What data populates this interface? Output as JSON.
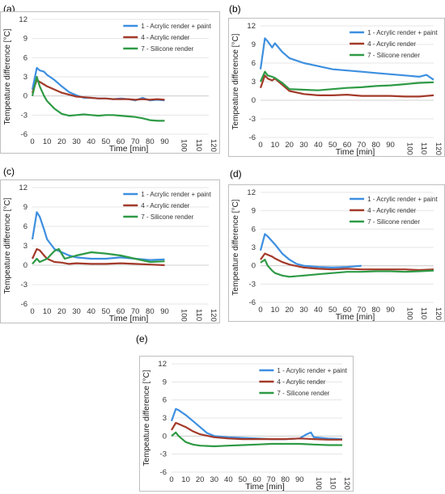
{
  "chart_data": [
    {
      "panel": "(a)",
      "type": "line",
      "xlabel": "Time [min]",
      "ylabel": "Tempeature difference [°C]",
      "ylim": [
        -6,
        12
      ],
      "yticks": [
        -6,
        -3,
        0,
        3,
        6,
        9,
        12
      ],
      "xticks": [
        0,
        10,
        20,
        30,
        40,
        50,
        60,
        70,
        80,
        90,
        100,
        110,
        120
      ],
      "grid": true,
      "legend_position": "top-right",
      "series": [
        {
          "name": "1 - Acrylic render + paint",
          "color": "#3d8fe0",
          "x": [
            0,
            3,
            5,
            8,
            10,
            15,
            20,
            25,
            30,
            35,
            40,
            45,
            50,
            55,
            60,
            65,
            70,
            75,
            80,
            85,
            90
          ],
          "y": [
            1.0,
            4.4,
            4.0,
            3.8,
            3.3,
            2.5,
            1.5,
            0.6,
            0.1,
            -0.3,
            -0.3,
            -0.4,
            -0.4,
            -0.5,
            -0.4,
            -0.5,
            -0.7,
            -0.3,
            -0.7,
            -0.6,
            -0.7
          ]
        },
        {
          "name": "4 - Acrylic render",
          "color": "#a33a2a",
          "x": [
            0,
            3,
            5,
            8,
            10,
            15,
            20,
            25,
            30,
            35,
            40,
            45,
            50,
            55,
            60,
            65,
            70,
            75,
            80,
            85,
            90
          ],
          "y": [
            0.5,
            2.5,
            2.2,
            1.8,
            1.5,
            1.0,
            0.5,
            0.2,
            -0.1,
            -0.2,
            -0.3,
            -0.4,
            -0.4,
            -0.5,
            -0.5,
            -0.5,
            -0.6,
            -0.5,
            -0.6,
            -0.5,
            -0.6
          ]
        },
        {
          "name": "7 - Silicone render",
          "color": "#2e9a45",
          "x": [
            0,
            3,
            5,
            8,
            10,
            15,
            20,
            25,
            30,
            35,
            40,
            45,
            50,
            55,
            60,
            65,
            70,
            75,
            80,
            85,
            90
          ],
          "y": [
            0.0,
            3.0,
            1.5,
            0.0,
            -0.8,
            -2.0,
            -2.8,
            -3.1,
            -3.0,
            -2.9,
            -3.0,
            -3.1,
            -3.0,
            -3.0,
            -3.1,
            -3.2,
            -3.3,
            -3.5,
            -3.8,
            -3.9,
            -3.9
          ]
        }
      ]
    },
    {
      "panel": "(b)",
      "type": "line",
      "xlabel": "Time [min]",
      "ylabel": "Tempeature difference [°C]",
      "ylim": [
        -6,
        12
      ],
      "yticks": [
        -6,
        -3,
        0,
        3,
        6,
        9,
        12
      ],
      "xticks": [
        0,
        10,
        20,
        30,
        40,
        50,
        60,
        70,
        80,
        90,
        100,
        110,
        120
      ],
      "grid": true,
      "legend_position": "top-right",
      "series": [
        {
          "name": "1 - Acrylic render + paint",
          "color": "#3d8fe0",
          "x": [
            0,
            3,
            5,
            8,
            10,
            15,
            20,
            30,
            40,
            50,
            60,
            70,
            80,
            90,
            100,
            110,
            115,
            120
          ],
          "y": [
            5.0,
            10.0,
            9.5,
            8.5,
            9.2,
            7.8,
            6.8,
            6.0,
            5.5,
            5.0,
            4.8,
            4.6,
            4.4,
            4.2,
            4.0,
            3.8,
            4.1,
            3.3
          ]
        },
        {
          "name": "4 - Acrylic render",
          "color": "#a33a2a",
          "x": [
            0,
            3,
            5,
            8,
            10,
            15,
            20,
            30,
            40,
            50,
            60,
            70,
            80,
            90,
            100,
            110,
            120
          ],
          "y": [
            2.0,
            4.0,
            3.5,
            3.2,
            3.5,
            2.5,
            1.5,
            1.0,
            0.8,
            0.8,
            0.9,
            0.7,
            0.7,
            0.7,
            0.6,
            0.6,
            0.8
          ]
        },
        {
          "name": "7 - Silicone render",
          "color": "#2e9a45",
          "x": [
            0,
            3,
            5,
            8,
            10,
            15,
            20,
            30,
            40,
            50,
            60,
            70,
            80,
            90,
            100,
            110,
            120
          ],
          "y": [
            3.0,
            4.6,
            4.0,
            3.8,
            3.6,
            2.8,
            1.8,
            1.7,
            1.6,
            1.8,
            2.0,
            2.1,
            2.3,
            2.4,
            2.6,
            2.8,
            2.9
          ]
        }
      ]
    },
    {
      "panel": "(c)",
      "type": "line",
      "xlabel": "Time [min]",
      "ylabel": "Tempeature difference [°C]",
      "ylim": [
        -6,
        12
      ],
      "yticks": [
        -6,
        -3,
        0,
        3,
        6,
        9,
        12
      ],
      "xticks": [
        0,
        10,
        20,
        30,
        40,
        50,
        60,
        70,
        80,
        90,
        100,
        110,
        120
      ],
      "grid": true,
      "legend_position": "top-right",
      "series": [
        {
          "name": "1 - Acrylic render + paint",
          "color": "#3d8fe0",
          "x": [
            0,
            3,
            5,
            8,
            10,
            15,
            20,
            25,
            30,
            40,
            50,
            60,
            70,
            80,
            90
          ],
          "y": [
            4.0,
            8.2,
            7.5,
            5.5,
            4.0,
            2.5,
            2.0,
            1.5,
            1.2,
            1.0,
            1.0,
            1.2,
            1.0,
            0.8,
            0.9
          ]
        },
        {
          "name": "4 - Acrylic render",
          "color": "#a33a2a",
          "x": [
            0,
            3,
            5,
            8,
            10,
            15,
            20,
            25,
            30,
            40,
            50,
            60,
            70,
            80,
            90
          ],
          "y": [
            1.0,
            2.5,
            2.3,
            1.5,
            1.0,
            0.5,
            0.4,
            0.2,
            0.3,
            0.2,
            0.2,
            0.3,
            0.2,
            0.1,
            0.0
          ]
        },
        {
          "name": "7 - Silicone render",
          "color": "#2e9a45",
          "x": [
            0,
            3,
            5,
            8,
            10,
            15,
            18,
            22,
            30,
            40,
            50,
            60,
            70,
            80,
            90
          ],
          "y": [
            0.2,
            1.0,
            0.5,
            0.8,
            1.0,
            2.2,
            2.5,
            1.0,
            1.5,
            2.0,
            1.8,
            1.5,
            1.0,
            0.5,
            0.6
          ]
        }
      ]
    },
    {
      "panel": "(d)",
      "type": "line",
      "xlabel": "Time [min]",
      "ylabel": "Tempeature difference [°C]",
      "ylim": [
        -6,
        12
      ],
      "yticks": [
        -6,
        -3,
        0,
        3,
        6,
        9,
        12
      ],
      "xticks": [
        0,
        10,
        20,
        30,
        40,
        50,
        60,
        70,
        80,
        90,
        100,
        110,
        120
      ],
      "grid": true,
      "legend_position": "top-right",
      "series": [
        {
          "name": "1 - Acrylic render + paint",
          "color": "#3d8fe0",
          "x": [
            0,
            3,
            5,
            8,
            10,
            15,
            20,
            25,
            30,
            40,
            50,
            60,
            70
          ],
          "y": [
            2.5,
            5.2,
            4.8,
            4.0,
            3.5,
            2.0,
            1.0,
            0.3,
            0.0,
            -0.2,
            -0.3,
            -0.2,
            0.0
          ]
        },
        {
          "name": "4 - Acrylic render",
          "color": "#a33a2a",
          "x": [
            0,
            3,
            5,
            8,
            10,
            15,
            20,
            30,
            40,
            50,
            60,
            70,
            80,
            90,
            100,
            110,
            120
          ],
          "y": [
            1.0,
            2.0,
            1.8,
            1.5,
            1.2,
            0.6,
            0.2,
            -0.3,
            -0.5,
            -0.6,
            -0.5,
            -0.6,
            -0.6,
            -0.6,
            -0.6,
            -0.7,
            -0.6
          ]
        },
        {
          "name": "7 - Silicone render",
          "color": "#2e9a45",
          "x": [
            0,
            3,
            5,
            8,
            10,
            15,
            20,
            30,
            40,
            50,
            60,
            70,
            80,
            90,
            100,
            110,
            120
          ],
          "y": [
            0.5,
            1.0,
            0.0,
            -0.8,
            -1.2,
            -1.6,
            -1.8,
            -1.6,
            -1.4,
            -1.2,
            -1.0,
            -1.0,
            -0.9,
            -0.9,
            -1.0,
            -0.9,
            -0.8
          ]
        }
      ]
    },
    {
      "panel": "(e)",
      "type": "line",
      "xlabel": "Time [min]",
      "ylabel": "Tempeature difference [°C]",
      "ylim": [
        -6,
        12
      ],
      "yticks": [
        -6,
        -3,
        0,
        3,
        6,
        9,
        12
      ],
      "xticks": [
        0,
        10,
        20,
        30,
        40,
        50,
        60,
        70,
        80,
        90,
        100,
        110,
        120
      ],
      "grid": true,
      "legend_position": "top-right",
      "series": [
        {
          "name": "1 - Acrylic render + paint",
          "color": "#3d8fe0",
          "x": [
            0,
            3,
            5,
            8,
            10,
            15,
            20,
            25,
            30,
            40,
            50,
            60,
            70,
            80,
            90,
            95,
            98,
            100,
            110,
            120
          ],
          "y": [
            2.5,
            4.5,
            4.3,
            3.8,
            3.5,
            2.5,
            1.5,
            0.5,
            0.0,
            -0.2,
            -0.3,
            -0.4,
            -0.5,
            -0.5,
            -0.4,
            0.3,
            0.6,
            -0.2,
            -0.4,
            -0.5
          ]
        },
        {
          "name": "4 - Acrylic render",
          "color": "#a33a2a",
          "x": [
            0,
            3,
            5,
            8,
            10,
            15,
            20,
            30,
            40,
            50,
            60,
            70,
            80,
            90,
            100,
            110,
            120
          ],
          "y": [
            1.0,
            2.2,
            2.0,
            1.7,
            1.5,
            0.8,
            0.3,
            -0.2,
            -0.4,
            -0.5,
            -0.5,
            -0.5,
            -0.5,
            -0.4,
            -0.5,
            -0.6,
            -0.6
          ]
        },
        {
          "name": "7 - Silicone render",
          "color": "#2e9a45",
          "x": [
            0,
            3,
            5,
            8,
            10,
            15,
            20,
            30,
            40,
            50,
            60,
            70,
            80,
            90,
            100,
            110,
            120
          ],
          "y": [
            0.0,
            0.6,
            0.0,
            -0.6,
            -1.0,
            -1.4,
            -1.6,
            -1.7,
            -1.6,
            -1.5,
            -1.4,
            -1.3,
            -1.3,
            -1.3,
            -1.4,
            -1.5,
            -1.5
          ]
        }
      ]
    }
  ]
}
